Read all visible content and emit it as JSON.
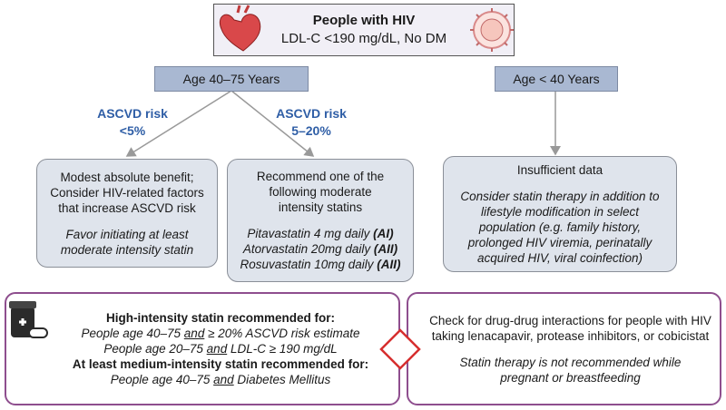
{
  "top": {
    "title": "People with HIV",
    "subtitle": "LDL-C <190 mg/dL, No DM"
  },
  "branches": {
    "left": "Age 40–75 Years",
    "right": "Age < 40 Years"
  },
  "risk_labels": [
    {
      "label": "ASCVD risk",
      "value": "<5%"
    },
    {
      "label": "ASCVD risk",
      "value": "5–20%"
    }
  ],
  "boxes": [
    {
      "lines": [
        "Modest absolute benefit;",
        "Consider HIV-related factors",
        "that increase ASCVD risk"
      ],
      "note": [
        "Favor initiating at least",
        "moderate intensity statin"
      ]
    },
    {
      "lines": [
        "Recommend one of the",
        "following moderate",
        "intensity statins"
      ],
      "statins": [
        {
          "drug": "Pitavastatin 4 mg daily",
          "grade": "(AI)"
        },
        {
          "drug": "Atorvastatin 20mg daily",
          "grade": "(AII)"
        },
        {
          "drug": "Rosuvastatin 10mg daily",
          "grade": "(AII)"
        }
      ]
    },
    {
      "lines": [
        "Insufficient data"
      ],
      "note": [
        "Consider statin therapy in addition to",
        "lifestyle modification in select",
        "population (e.g. family history,",
        "prolonged HIV viremia, perinatally",
        "acquired HIV, viral coinfection)"
      ]
    }
  ],
  "bottom_left": {
    "sections": [
      {
        "heading": "High-intensity statin recommended for:",
        "items": [
          [
            "People age 40–75 ",
            "and",
            " ≥ 20% ASCVD risk estimate"
          ],
          [
            "People age 20–75 ",
            "and",
            " LDL-C ≥ 190 mg/dL"
          ]
        ]
      },
      {
        "heading": "At least medium-intensity statin recommended for:",
        "items": [
          [
            "People age 40–75 ",
            "and",
            " Diabetes Mellitus"
          ]
        ]
      }
    ]
  },
  "bottom_right": {
    "lines": [
      "Check for drug-drug interactions for people with HIV",
      "taking lenacapavir, protease inhibitors, or cobicistat"
    ],
    "note": [
      "Statin therapy is not recommended while",
      "pregnant or breastfeeding"
    ]
  }
}
